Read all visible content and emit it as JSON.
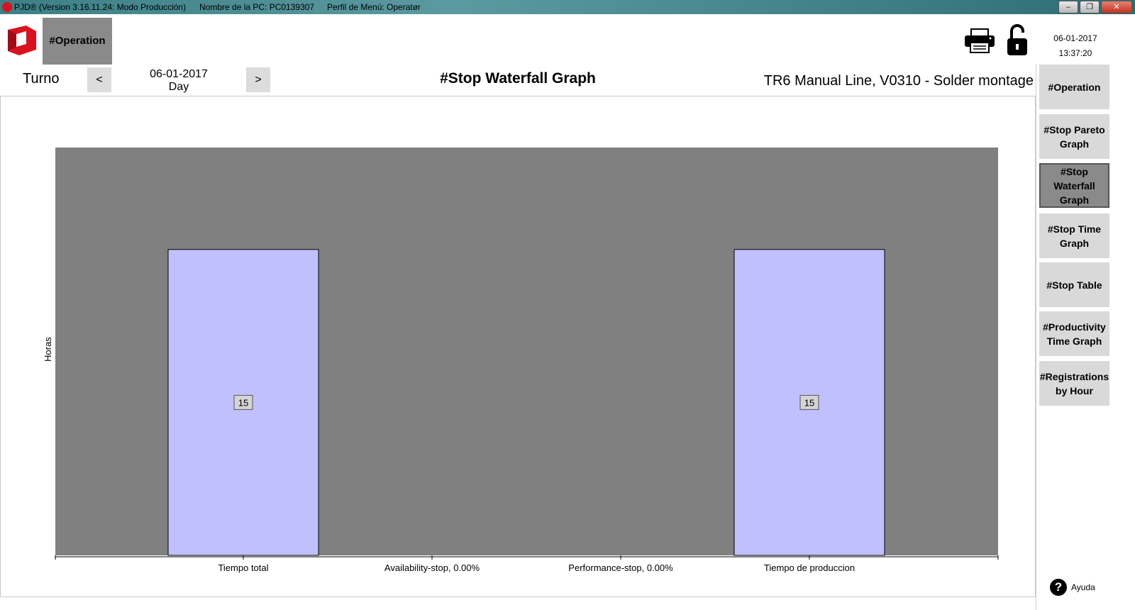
{
  "titlebar": {
    "app": "PJD® (Version 3.16.11.24: Modo Producción)",
    "pc": "Nombre de la PC: PC0139307",
    "profile": "Perfil de Menú: Operatør",
    "minimize": "–",
    "restore": "❐",
    "close": "✕"
  },
  "header": {
    "operation_tab": "#Operation",
    "date": "06-01-2017",
    "time": "13:37:20"
  },
  "nav": {
    "turno_label": "Turno",
    "prev": "<",
    "next": ">",
    "date": "06-01-2017",
    "period": "Day"
  },
  "page_title": "#Stop Waterfall Graph",
  "line_info": "TR6 Manual Line, V0310 - Solder montage",
  "sidebar": {
    "items": [
      {
        "label": "#Operation",
        "active": false
      },
      {
        "label": "#Stop Pareto Graph",
        "active": false
      },
      {
        "label": "#Stop Waterfall Graph",
        "active": true
      },
      {
        "label": "#Stop Time Graph",
        "active": false
      },
      {
        "label": "#Stop Table",
        "active": false
      },
      {
        "label": "#Productivity Time Graph",
        "active": false
      },
      {
        "label": "#Registrations by Hour",
        "active": false
      }
    ]
  },
  "help": {
    "label": "Ayuda",
    "icon": "question-icon"
  },
  "colors": {
    "plot_background": "#808080",
    "bar_fill": "#c0c0ff",
    "active_tab": "#8a8a8a",
    "logo_red": "#d9121f"
  },
  "chart_data": {
    "type": "bar",
    "categories": [
      "Tiempo total",
      "Availability-stop, 0.00%",
      "Performance-stop, 0.00%",
      "Tiempo de produccion"
    ],
    "values": [
      15,
      0,
      0,
      15
    ],
    "data_labels": [
      "15",
      "",
      "",
      "15"
    ],
    "ylabel": "Horas",
    "ylim": [
      0,
      20
    ],
    "grid": false
  }
}
